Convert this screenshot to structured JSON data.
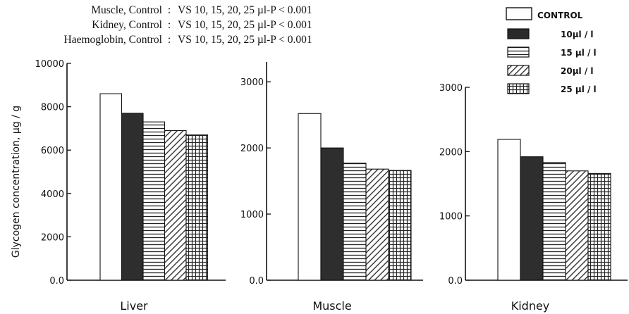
{
  "stats_lines": [
    {
      "label": "Muscle, Control",
      "sep": ":",
      "text": "VS 10, 15, 20, 25 µl-P < 0.001"
    },
    {
      "label": "Kidney, Control",
      "sep": ":",
      "text": "VS 10, 15, 20, 25 µl-P < 0.001"
    },
    {
      "label": "Haemoglobin, Control",
      "sep": ":",
      "text": "VS 10, 15, 20, 25 µl-P < 0.001"
    }
  ],
  "legend": [
    {
      "label": "CONTROL",
      "pattern": "white"
    },
    {
      "label": "10µl / l",
      "pattern": "dark"
    },
    {
      "label": "15 µl / l",
      "pattern": "hlines"
    },
    {
      "label": "20µl / l",
      "pattern": "diag"
    },
    {
      "label": "25 µl / l",
      "pattern": "grid"
    }
  ],
  "chart_data": [
    {
      "type": "bar",
      "title": "Liver",
      "xlabel": "Liver",
      "ylabel": "Glycogen concentration, µg / g",
      "ylim": [
        0,
        10000
      ],
      "yticks": [
        0,
        2000,
        4000,
        6000,
        8000,
        10000
      ],
      "ytick_labels": [
        "0.0",
        "2000",
        "4000",
        "6000",
        "8000",
        "10000"
      ],
      "categories": [
        "CONTROL",
        "10µl / l",
        "15 µl / l",
        "20µl / l",
        "25 µl / l"
      ],
      "values": [
        8600,
        7700,
        7300,
        6900,
        6700
      ]
    },
    {
      "type": "bar",
      "title": "Muscle",
      "xlabel": "Muscle",
      "ylabel": "",
      "ylim": [
        0,
        3300
      ],
      "yticks": [
        0,
        1000,
        2000,
        3000
      ],
      "ytick_labels": [
        "0.0",
        "1000",
        "2000",
        "3000"
      ],
      "categories": [
        "CONTROL",
        "10µl / l",
        "15 µl / l",
        "20µl / l",
        "25 µl / l"
      ],
      "values": [
        2520,
        2000,
        1770,
        1680,
        1660
      ]
    },
    {
      "type": "bar",
      "title": "Kidney",
      "xlabel": "Kidney",
      "ylabel": "",
      "ylim": [
        0,
        3000
      ],
      "yticks": [
        0,
        1000,
        2000,
        3000
      ],
      "ytick_labels": [
        "0.0",
        "1000",
        "2000",
        "3000"
      ],
      "categories": [
        "CONTROL",
        "10µl / l",
        "15 µl / l",
        "20µl / l",
        "25 µl / l"
      ],
      "values": [
        2190,
        1920,
        1830,
        1700,
        1660
      ]
    }
  ]
}
